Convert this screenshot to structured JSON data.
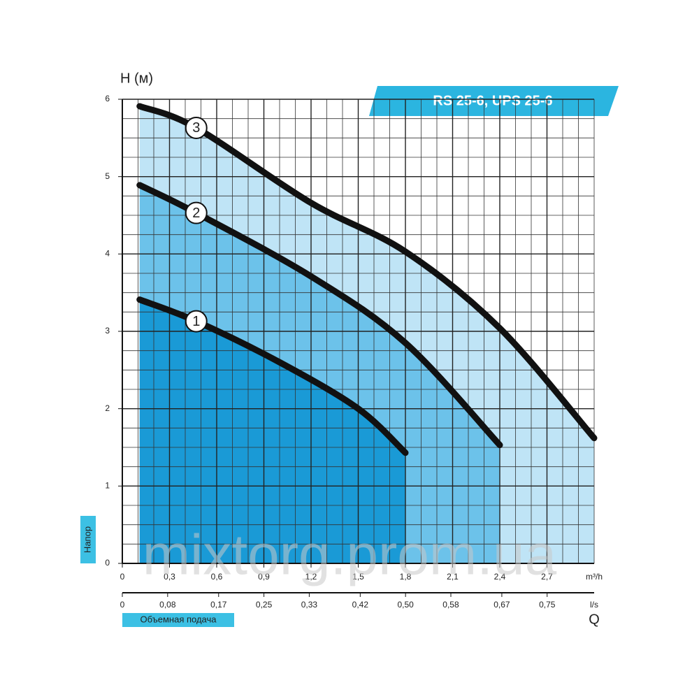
{
  "chart_data": {
    "type": "line",
    "title": "RS 25-6, UPS 25-6",
    "y_label": "H (м)",
    "y_caption": "Напор",
    "x_unit": "m³/h",
    "x2_unit": "l/s",
    "x_label": "Q",
    "x_caption": "Объемная подача",
    "watermark": "mixtorg.prom.ua",
    "xlim": [
      0,
      3.0
    ],
    "ylim": [
      0,
      6
    ],
    "x2lim": [
      0,
      0.833
    ],
    "xticks": [
      0,
      {
        "value": 0.3,
        "label": "0,3"
      },
      {
        "value": 0.6,
        "label": "0,6"
      },
      {
        "value": 0.9,
        "label": "0,9"
      },
      {
        "value": 1.2,
        "label": "1,2"
      },
      {
        "value": 1.5,
        "label": "1,5"
      },
      {
        "value": 1.8,
        "label": "1,8"
      },
      {
        "value": 2.1,
        "label": "2,1"
      },
      {
        "value": 2.4,
        "label": "2,4"
      },
      {
        "value": 2.7,
        "label": "2,7"
      }
    ],
    "x2ticks": [
      0,
      {
        "value": 0.08,
        "label": "0,08"
      },
      {
        "value": 0.17,
        "label": "0,17"
      },
      {
        "value": 0.25,
        "label": "0,25"
      },
      {
        "value": 0.33,
        "label": "0,33"
      },
      {
        "value": 0.42,
        "label": "0,42"
      },
      {
        "value": 0.5,
        "label": "0,50"
      },
      {
        "value": 0.58,
        "label": "0,58"
      },
      {
        "value": 0.67,
        "label": "0,67"
      },
      {
        "value": 0.75,
        "label": "0,75"
      }
    ],
    "yticks": [
      0,
      1,
      2,
      3,
      4,
      5,
      6
    ],
    "grid": true,
    "series": [
      {
        "name": "1",
        "color": "#111111",
        "fill": "#1a9ad6",
        "x": [
          0.11,
          0.47,
          1.0,
          1.5,
          1.8
        ],
        "values": [
          3.41,
          3.13,
          2.6,
          2.0,
          1.43
        ]
      },
      {
        "name": "2",
        "color": "#111111",
        "fill": "#6cc2ea",
        "x": [
          0.11,
          0.47,
          1.2,
          1.8,
          2.4
        ],
        "values": [
          4.89,
          4.53,
          3.71,
          2.85,
          1.53
        ]
      },
      {
        "name": "3",
        "color": "#111111",
        "fill": "#bfe4f6",
        "x": [
          0.11,
          0.47,
          1.2,
          1.8,
          2.4,
          3.0
        ],
        "values": [
          5.91,
          5.63,
          4.66,
          4.03,
          3.04,
          1.62
        ]
      }
    ]
  }
}
